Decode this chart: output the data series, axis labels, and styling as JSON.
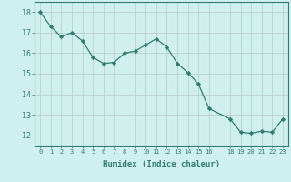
{
  "x": [
    0,
    1,
    2,
    3,
    4,
    5,
    6,
    7,
    8,
    9,
    10,
    11,
    12,
    13,
    14,
    15,
    16,
    18,
    19,
    20,
    21,
    22,
    23
  ],
  "y": [
    18.0,
    17.3,
    16.8,
    17.0,
    16.6,
    15.8,
    15.5,
    15.55,
    16.0,
    16.1,
    16.4,
    16.7,
    16.3,
    15.5,
    15.05,
    14.5,
    13.3,
    12.8,
    12.15,
    12.1,
    12.2,
    12.15,
    12.8
  ],
  "line_color": "#2e7d6e",
  "marker": "D",
  "marker_size": 2.2,
  "bg_color": "#cff0ec",
  "grid_major_color": "#b8c8c5",
  "grid_minor_color": "#d4e8e5",
  "xlabel": "Humidex (Indice chaleur)",
  "xlim": [
    -0.5,
    23.5
  ],
  "ylim": [
    11.5,
    18.5
  ],
  "yticks": [
    12,
    13,
    14,
    15,
    16,
    17,
    18
  ],
  "xticks": [
    0,
    1,
    2,
    3,
    4,
    5,
    6,
    7,
    8,
    9,
    10,
    11,
    12,
    13,
    14,
    15,
    16,
    18,
    19,
    20,
    21,
    22,
    23
  ],
  "xtick_labels": [
    "0",
    "1",
    "2",
    "3",
    "4",
    "5",
    "6",
    "7",
    "8",
    "9",
    "10",
    "11",
    "12",
    "13",
    "14",
    "15",
    "16",
    "18",
    "19",
    "20",
    "21",
    "22",
    "23"
  ],
  "tick_color": "#2e7d6e",
  "label_color": "#2e7d6e",
  "spine_color": "#2e7d6e",
  "xlabel_fontsize": 6.5,
  "xtick_fontsize": 5.0,
  "ytick_fontsize": 6.0
}
